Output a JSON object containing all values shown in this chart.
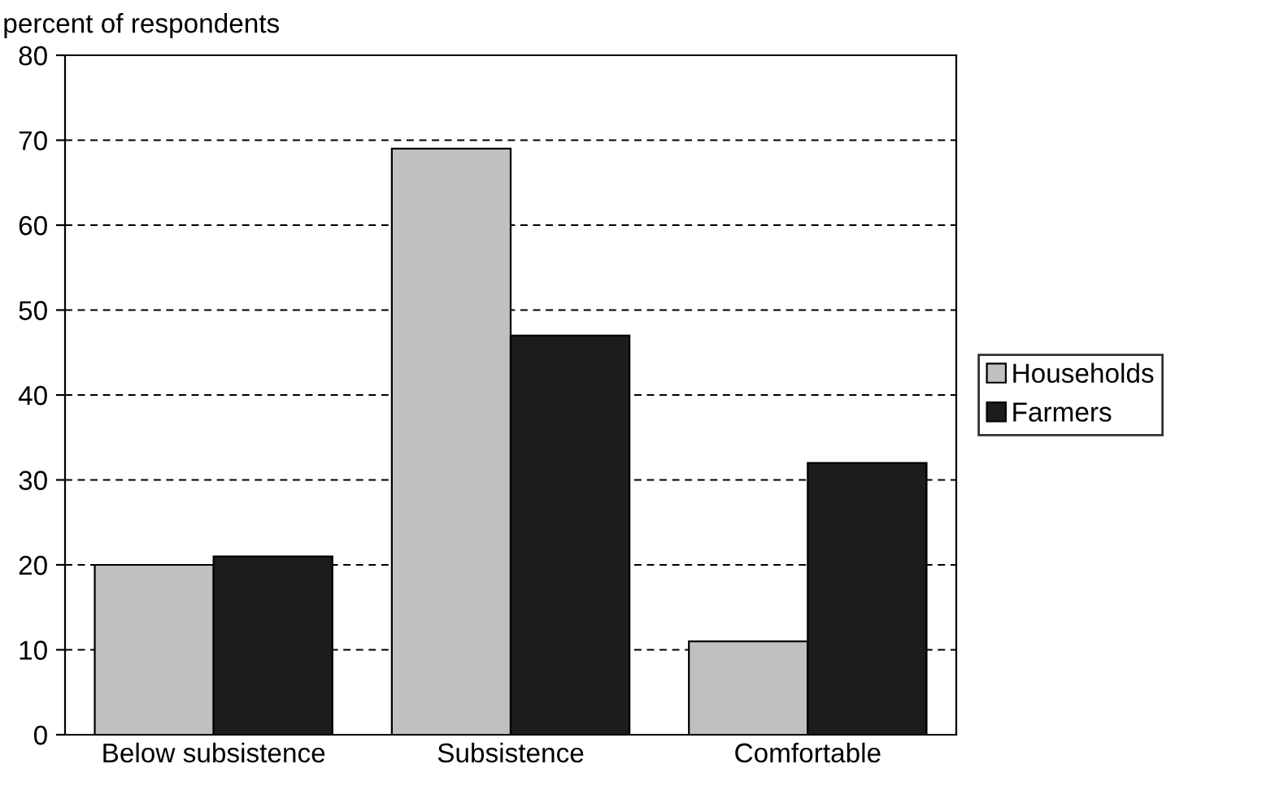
{
  "chart_data": {
    "type": "bar",
    "ylabel": "percent of respondents",
    "categories": [
      "Below subsistence",
      "Subsistence",
      "Comfortable"
    ],
    "series": [
      {
        "name": "Households",
        "color": "#c0c0c0",
        "values": [
          20,
          69,
          11
        ]
      },
      {
        "name": "Farmers",
        "color": "#1c1c1c",
        "values": [
          21,
          47,
          32
        ]
      }
    ],
    "ylim": [
      0,
      80
    ],
    "yticks": [
      0,
      10,
      20,
      30,
      40,
      50,
      60,
      70,
      80
    ],
    "grid": "y",
    "legend": "right"
  }
}
